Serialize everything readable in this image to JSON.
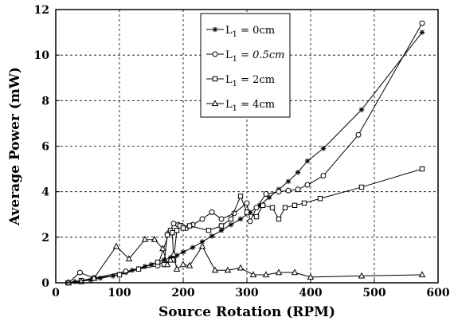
{
  "chart_data": {
    "type": "line",
    "xlabel": "Source Rotation (RPM)",
    "ylabel": "Average Power (mW)",
    "xlim": [
      0,
      600
    ],
    "ylim": [
      0,
      12
    ],
    "x_ticks": [
      "0",
      "100",
      "200",
      "300",
      "400",
      "500",
      "600"
    ],
    "y_ticks": [
      "0",
      "2",
      "4",
      "6",
      "8",
      "10",
      "12"
    ],
    "grid": true,
    "legend_position": "top-center",
    "series": [
      {
        "name_prefix": "L",
        "name_sub": "1",
        "name_value": " = 0cm",
        "name_italic": false,
        "marker": "star",
        "x": [
          18,
          30,
          40,
          55,
          70,
          90,
          100,
          110,
          120,
          130,
          140,
          150,
          160,
          170,
          180,
          185,
          190,
          200,
          215,
          230,
          245,
          260,
          275,
          290,
          305,
          320,
          335,
          350,
          365,
          380,
          395,
          420,
          480,
          575
        ],
        "y": [
          0.0,
          0.05,
          0.08,
          0.12,
          0.2,
          0.3,
          0.38,
          0.45,
          0.55,
          0.62,
          0.72,
          0.8,
          0.9,
          1.0,
          1.1,
          1.15,
          1.2,
          1.35,
          1.55,
          1.8,
          2.05,
          2.3,
          2.55,
          2.8,
          3.1,
          3.4,
          3.75,
          4.1,
          4.45,
          4.85,
          5.35,
          5.9,
          7.6,
          11.0
        ]
      },
      {
        "name_prefix": "L",
        "name_sub": "1",
        "name_value": " = 0.5cm",
        "name_italic": true,
        "marker": "circle",
        "x": [
          20,
          38,
          60,
          110,
          160,
          178,
          185,
          192,
          198,
          205,
          215,
          230,
          245,
          260,
          280,
          300,
          305,
          315,
          330,
          350,
          365,
          380,
          395,
          420,
          475,
          575
        ],
        "y": [
          0.0,
          0.45,
          0.2,
          0.5,
          0.75,
          2.2,
          2.6,
          2.55,
          2.5,
          2.4,
          2.55,
          2.8,
          3.1,
          2.8,
          3.05,
          3.5,
          2.7,
          3.3,
          3.9,
          4.0,
          4.05,
          4.1,
          4.3,
          4.7,
          6.5,
          11.4
        ]
      },
      {
        "name_prefix": "L",
        "name_sub": "1",
        "name_value": " = 2cm",
        "name_italic": false,
        "marker": "square",
        "x": [
          20,
          40,
          60,
          100,
          130,
          160,
          170,
          175,
          180,
          183,
          185,
          190,
          195,
          200,
          210,
          240,
          260,
          275,
          290,
          300,
          315,
          325,
          340,
          350,
          360,
          375,
          390,
          415,
          480,
          575
        ],
        "y": [
          0.0,
          0.1,
          0.2,
          0.35,
          0.6,
          0.9,
          0.8,
          2.1,
          2.3,
          2.2,
          1.0,
          2.3,
          2.5,
          2.4,
          2.5,
          2.3,
          2.5,
          2.8,
          3.8,
          3.1,
          2.9,
          3.4,
          3.3,
          2.8,
          3.3,
          3.4,
          3.5,
          3.7,
          4.2,
          5.0
        ]
      },
      {
        "name_prefix": "L",
        "name_sub": "1",
        "name_value": " = 4cm",
        "name_italic": false,
        "marker": "triangle",
        "x": [
          20,
          40,
          60,
          95,
          115,
          140,
          155,
          168,
          175,
          180,
          185,
          190,
          200,
          210,
          230,
          250,
          270,
          290,
          310,
          330,
          350,
          375,
          400,
          480,
          575
        ],
        "y": [
          0.0,
          0.05,
          0.2,
          1.6,
          1.05,
          1.9,
          1.9,
          1.5,
          0.8,
          1.0,
          1.25,
          0.6,
          0.8,
          0.75,
          1.6,
          0.55,
          0.55,
          0.65,
          0.35,
          0.35,
          0.45,
          0.45,
          0.25,
          0.3,
          0.35
        ]
      }
    ]
  }
}
